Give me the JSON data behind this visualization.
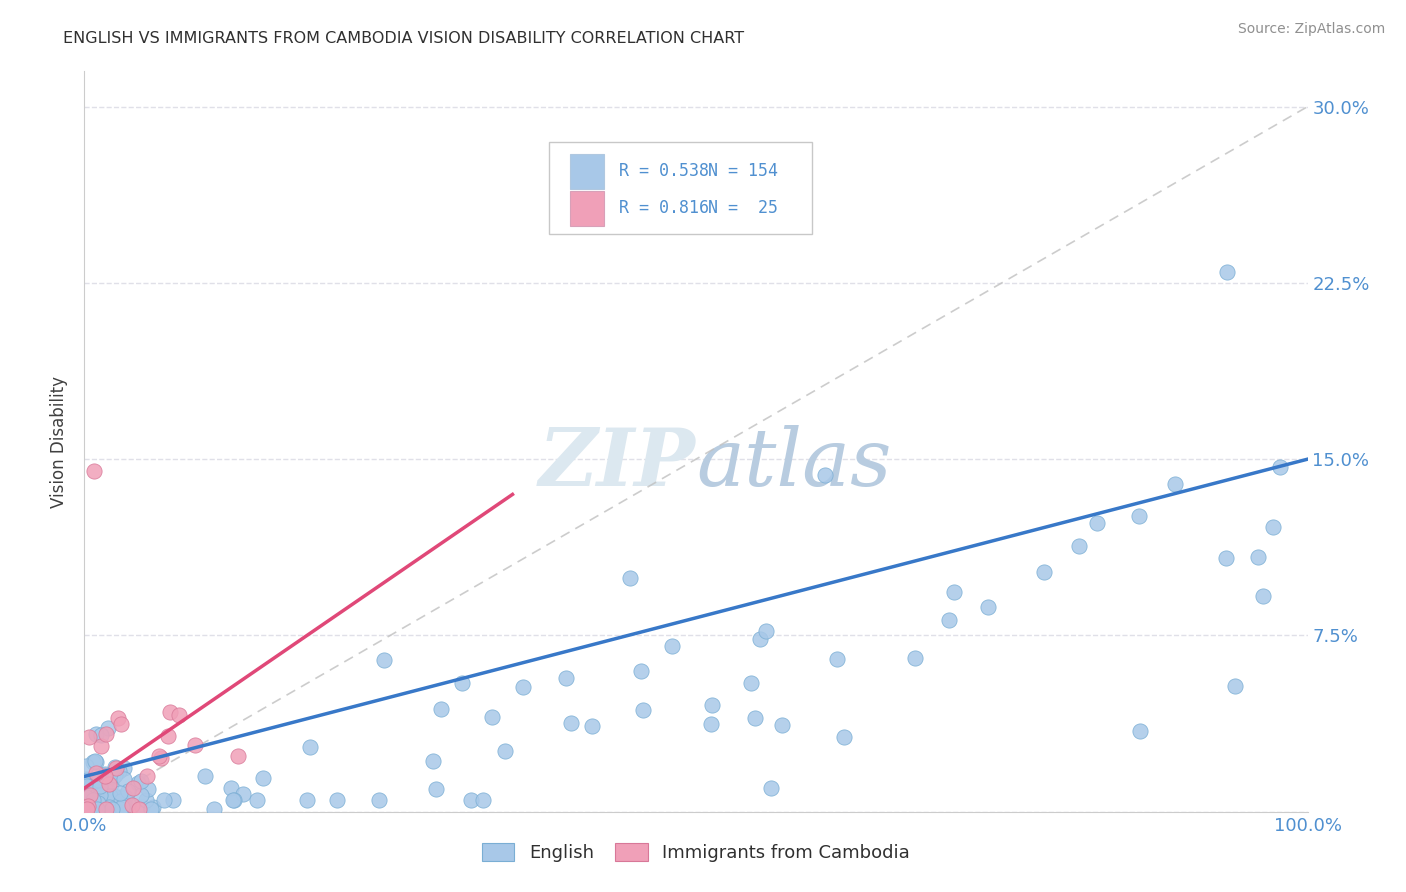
{
  "title": "ENGLISH VS IMMIGRANTS FROM CAMBODIA VISION DISABILITY CORRELATION CHART",
  "source": "Source: ZipAtlas.com",
  "ylabel": "Vision Disability",
  "ytick_values": [
    0.0,
    7.5,
    15.0,
    22.5,
    30.0
  ],
  "ytick_labels_right": [
    "",
    "7.5%",
    "15.0%",
    "22.5%",
    "30.0%"
  ],
  "xlim": [
    0,
    100
  ],
  "ylim": [
    0,
    31.5
  ],
  "english_color": "#a8c8e8",
  "english_edge_color": "#7aaed4",
  "cambodia_color": "#f0a0b8",
  "cambodia_edge_color": "#d87898",
  "trendline_english_color": "#3878c8",
  "trendline_cambodia_color": "#e04878",
  "refline_color": "#c0c0c0",
  "background_color": "#ffffff",
  "grid_color": "#e0e0e8",
  "tick_color": "#5090d0",
  "title_color": "#303030",
  "source_color": "#909090",
  "watermark_color": "#dce8f0",
  "legend_r1": "R = 0.538",
  "legend_n1": "N = 154",
  "legend_r2": "R = 0.816",
  "legend_n2": "N =  25",
  "eng_trendline_x": [
    0,
    100
  ],
  "eng_trendline_y": [
    1.5,
    15.0
  ],
  "cam_trendline_x": [
    0,
    35
  ],
  "cam_trendline_y": [
    1.0,
    13.5
  ],
  "refline_x": [
    0,
    100
  ],
  "refline_y": [
    0,
    30
  ]
}
